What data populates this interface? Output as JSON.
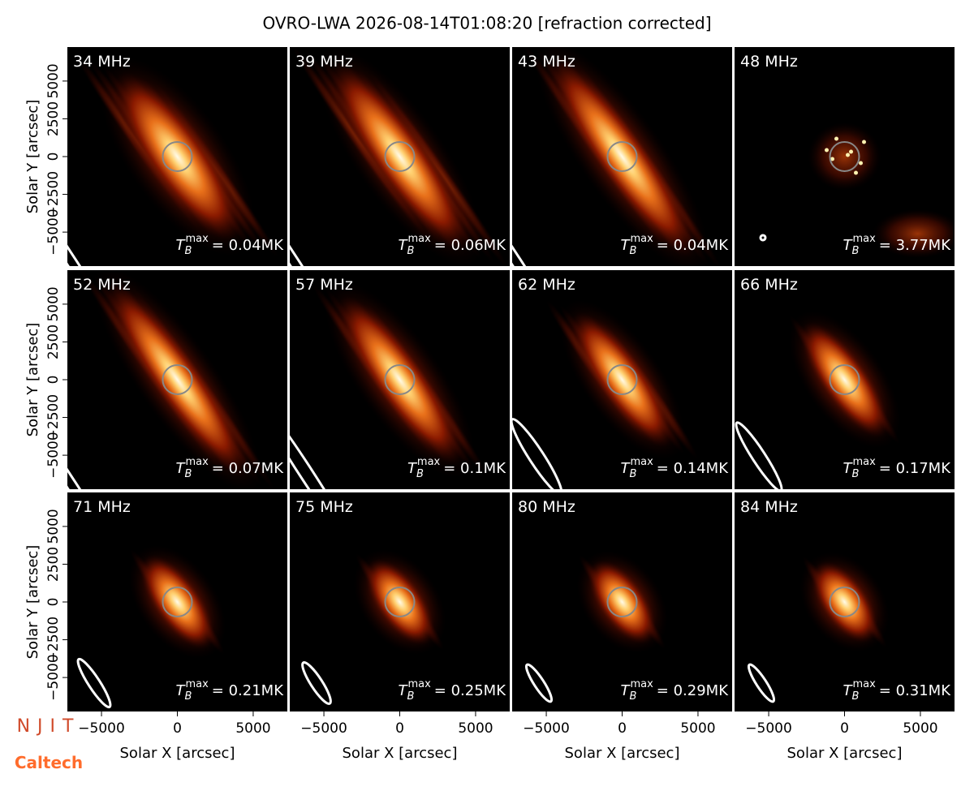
{
  "chart_data": {
    "type": "image",
    "title": "OVRO-LWA 2026-08-14T01:08:20 [refraction corrected]",
    "xlabel": "Solar X [arcsec]",
    "ylabel": "Solar Y [arcsec]",
    "xlim": [
      -7250,
      7250
    ],
    "ylim": [
      -7250,
      7250
    ],
    "xticks": [
      {
        "value": -5000,
        "label": "−5000"
      },
      0,
      5000
    ],
    "yticks": [
      {
        "value": -5000,
        "label": "−5000"
      },
      {
        "value": -2500,
        "label": "−2500"
      },
      0,
      2500,
      5000
    ],
    "tb_symbol": {
      "base": "T",
      "sub": "B",
      "sup": "max"
    },
    "panels": [
      {
        "label": "34 MHz",
        "tb_max_label": "= 0.04MK"
      },
      {
        "label": "39 MHz",
        "tb_max_label": "= 0.06MK"
      },
      {
        "label": "43 MHz",
        "tb_max_label": "= 0.04MK"
      },
      {
        "label": "48 MHz",
        "tb_max_label": "= 3.77MK"
      },
      {
        "label": "52 MHz",
        "tb_max_label": "= 0.07MK"
      },
      {
        "label": "57 MHz",
        "tb_max_label": "= 0.1MK"
      },
      {
        "label": "62 MHz",
        "tb_max_label": "= 0.14MK"
      },
      {
        "label": "66 MHz",
        "tb_max_label": "= 0.17MK"
      },
      {
        "label": "71 MHz",
        "tb_max_label": "= 0.21MK"
      },
      {
        "label": "75 MHz",
        "tb_max_label": "= 0.25MK"
      },
      {
        "label": "80 MHz",
        "tb_max_label": "= 0.29MK"
      },
      {
        "label": "84 MHz",
        "tb_max_label": "= 0.31MK"
      }
    ]
  },
  "logos": {
    "njit": "NJIT",
    "caltech": "Caltech"
  }
}
